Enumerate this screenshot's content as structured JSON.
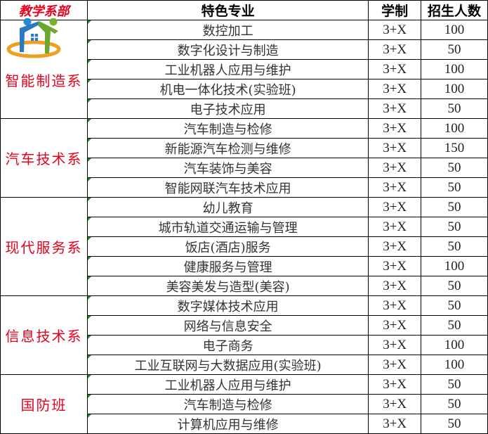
{
  "header": {
    "dept": "教学系部",
    "major": "特色专业",
    "duration": "学制",
    "enrollment": "招生人数"
  },
  "departments": [
    {
      "name": "智能制造系",
      "rows": [
        [
          "数控加工",
          "3+X",
          "100"
        ],
        [
          "数字化设计与制造",
          "3+X",
          "50"
        ],
        [
          "工业机器人应用与维护",
          "3+X",
          "100"
        ],
        [
          "机电一体化技术(实验班)",
          "3+X",
          "100"
        ],
        [
          "电子技术应用",
          "3+X",
          "50"
        ]
      ]
    },
    {
      "name": "汽车技术系",
      "rows": [
        [
          "汽车制造与检修",
          "3+X",
          "100"
        ],
        [
          "新能源汽车检测与维修",
          "3+X",
          "150"
        ],
        [
          "汽车装饰与美容",
          "3+X",
          "50"
        ],
        [
          "智能网联汽车技术应用",
          "3+X",
          "50"
        ]
      ]
    },
    {
      "name": "现代服务系",
      "rows": [
        [
          "幼儿教育",
          "3+X",
          "50"
        ],
        [
          "城市轨道交通运输与管理",
          "3+X",
          "50"
        ],
        [
          "饭店(酒店)服务",
          "3+X",
          "50"
        ],
        [
          "健康服务与管理",
          "3+X",
          "100"
        ],
        [
          "美容美发与造型(美容)",
          "3+X",
          "50"
        ]
      ]
    },
    {
      "name": "信息技术系",
      "rows": [
        [
          "数字媒体技术应用",
          "3+X",
          "50"
        ],
        [
          "网络与信息安全",
          "3+X",
          "50"
        ],
        [
          "电子商务",
          "3+X",
          "100"
        ],
        [
          "工业互联网与大数据应用(实验班)",
          "3+X",
          "100"
        ]
      ]
    },
    {
      "name": "国防班",
      "rows": [
        [
          "工业机器人应用与维护",
          "3+X",
          "50"
        ],
        [
          "汽车制造与检修",
          "3+X",
          "50"
        ],
        [
          "计算机应用与维修",
          "3+X",
          "50"
        ]
      ]
    }
  ],
  "colors": {
    "dept_text": "#e8001c",
    "marker": "#1a8a2a"
  },
  "logo": {
    "icon": "house-people-logo"
  }
}
